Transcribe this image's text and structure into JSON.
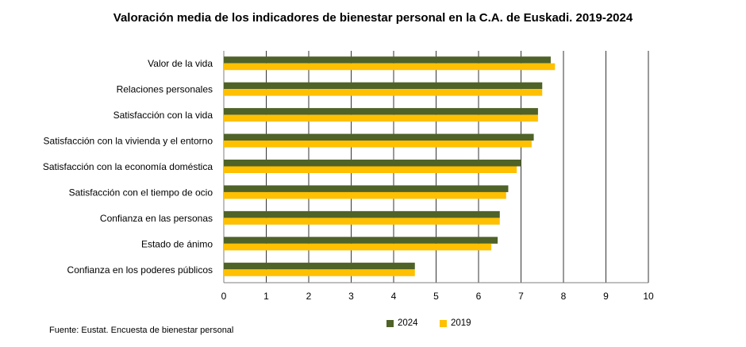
{
  "chart_data": {
    "type": "bar",
    "orientation": "horizontal",
    "title": "Valoración media de los indicadores de bienestar personal en la C.A. de Euskadi. 2019-2024",
    "categories": [
      "Valor de la vida",
      "Relaciones personales",
      "Satisfacción con la vida",
      "Satisfacción con la vivienda y el entorno",
      "Satisfacción con la economía doméstica",
      "Satisfacción con el tiempo de ocio",
      "Confianza en las personas",
      "Estado de ánimo",
      "Confianza en los poderes públicos"
    ],
    "series": [
      {
        "name": "2024",
        "color": "#4f6228",
        "values": [
          7.7,
          7.5,
          7.4,
          7.3,
          7.0,
          6.7,
          6.5,
          6.45,
          4.5
        ]
      },
      {
        "name": "2019",
        "color": "#ffc000",
        "values": [
          7.8,
          7.5,
          7.4,
          7.25,
          6.9,
          6.65,
          6.5,
          6.3,
          4.5
        ]
      }
    ],
    "xlim": [
      0,
      10
    ],
    "xticks": [
      "0",
      "1",
      "2",
      "3",
      "4",
      "5",
      "6",
      "7",
      "8",
      "9",
      "10"
    ],
    "grid": "vertical",
    "legend_position": "bottom"
  },
  "source": "Fuente: Eustat. Encuesta de bienestar personal"
}
